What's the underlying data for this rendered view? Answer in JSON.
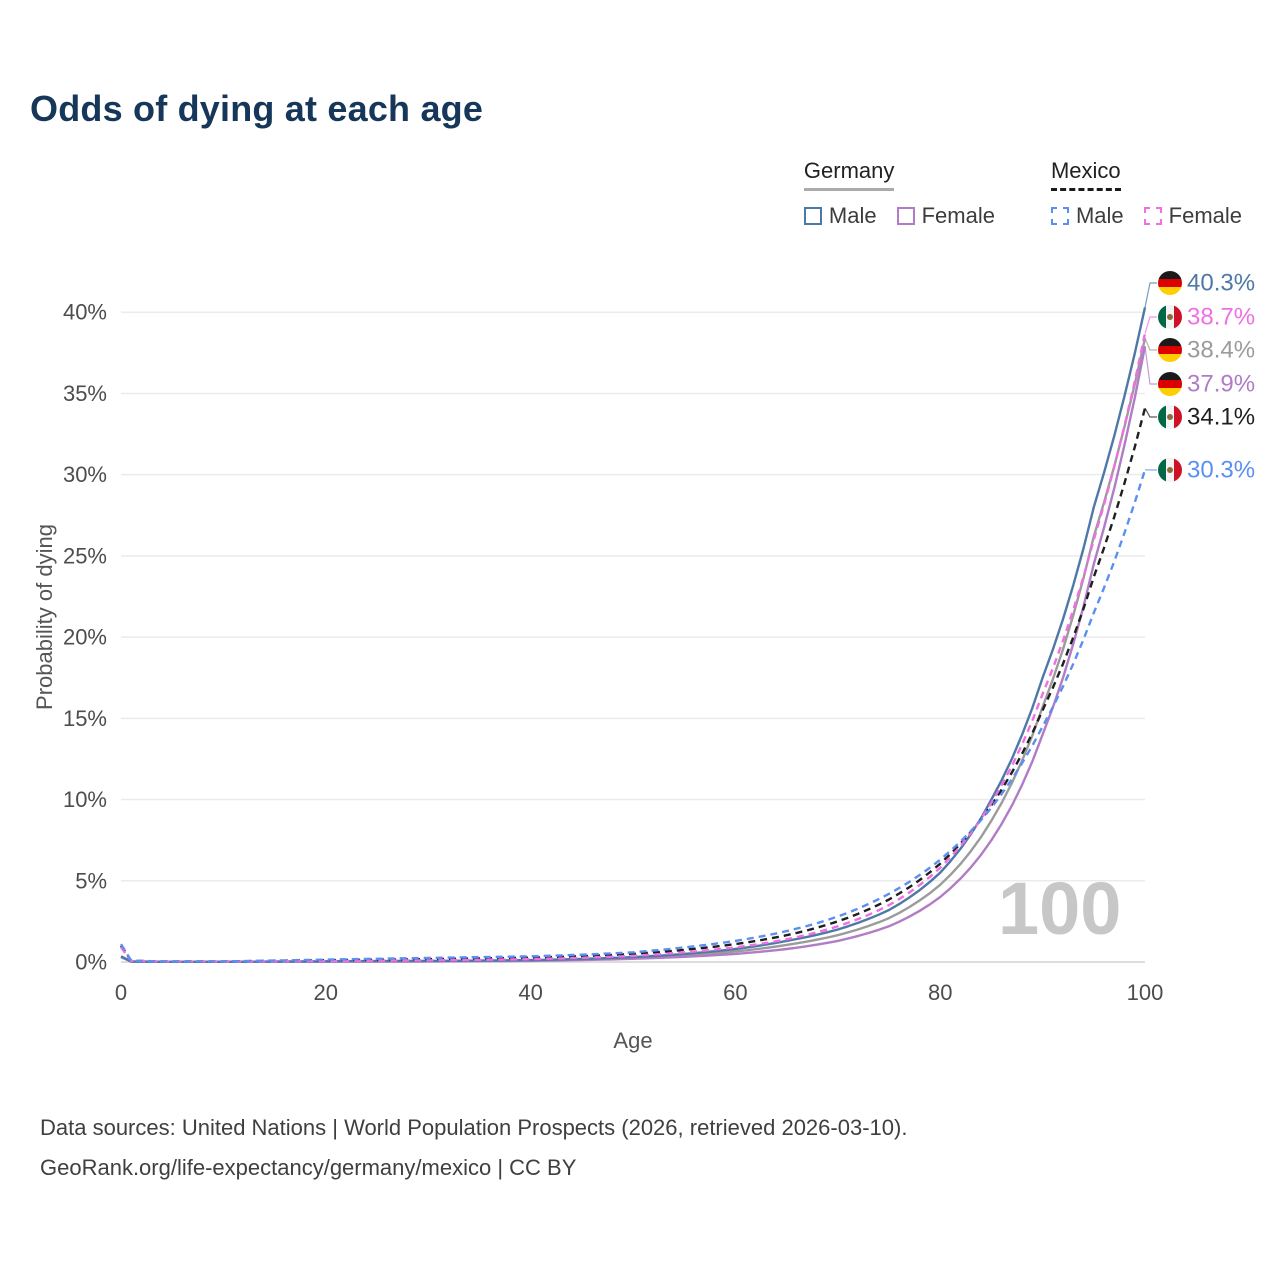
{
  "title": "Odds of dying at each age",
  "watermark": "100",
  "axis": {
    "x_label": "Age",
    "y_label": "Probability of dying"
  },
  "legend": {
    "groups": [
      {
        "label": "Germany",
        "items": [
          {
            "label": "Male",
            "series": "germany-male"
          },
          {
            "label": "Female",
            "series": "germany-female"
          }
        ]
      },
      {
        "label": "Mexico",
        "items": [
          {
            "label": "Male",
            "series": "mexico-male"
          },
          {
            "label": "Female",
            "series": "mexico-female"
          }
        ]
      }
    ]
  },
  "footer": {
    "line1": "Data sources: United Nations | World Population Prospects (2026, retrieved 2026-03-10).",
    "line2": "GeoRank.org/life-expectancy/germany/mexico | CC BY"
  },
  "chart_data": {
    "type": "line",
    "title": "Odds of dying at each age",
    "xlabel": "Age",
    "ylabel": "Probability of dying",
    "xlim": [
      0,
      100
    ],
    "ylim": [
      0,
      42.6
    ],
    "grid": "horizontal",
    "legend_position": "top-right",
    "x_ticks": {
      "values": [
        0,
        20,
        40,
        60,
        80,
        100
      ],
      "labels": [
        "0",
        "20",
        "40",
        "60",
        "80",
        "100"
      ]
    },
    "y_ticks": {
      "values": [
        0,
        5,
        10,
        15,
        20,
        25,
        30,
        35,
        40
      ],
      "labels": [
        "0%",
        "5%",
        "10%",
        "15%",
        "20%",
        "25%",
        "30%",
        "35%",
        "40%"
      ]
    },
    "age_indicator": "100",
    "series": [
      {
        "id": "germany-male",
        "country": "germany",
        "name": "Germany Male",
        "color": "#4e79a7",
        "dash": false,
        "end_label": "40.3%",
        "end_value": 40.3,
        "label_order": 0,
        "ages": [
          0,
          1,
          5,
          10,
          15,
          20,
          25,
          30,
          35,
          40,
          45,
          50,
          55,
          60,
          65,
          70,
          75,
          80,
          85,
          90,
          95,
          100
        ],
        "values": [
          0.35,
          0.03,
          0.012,
          0.012,
          0.025,
          0.045,
          0.055,
          0.065,
          0.085,
          0.12,
          0.19,
          0.3,
          0.5,
          0.8,
          1.3,
          2.0,
          3.2,
          5.5,
          10.0,
          17.5,
          28.0,
          40.3
        ]
      },
      {
        "id": "mexico-female",
        "country": "mexico",
        "name": "Mexico Female",
        "color": "#f06fe2",
        "dash": true,
        "end_label": "38.7%",
        "end_value": 38.7,
        "label_order": 1,
        "ages": [
          0,
          1,
          5,
          10,
          15,
          20,
          25,
          30,
          35,
          40,
          45,
          50,
          55,
          60,
          65,
          70,
          75,
          80,
          85,
          90,
          95,
          100
        ],
        "values": [
          0.9,
          0.07,
          0.025,
          0.03,
          0.045,
          0.06,
          0.08,
          0.1,
          0.13,
          0.18,
          0.26,
          0.38,
          0.6,
          0.9,
          1.4,
          2.2,
          3.5,
          5.8,
          9.8,
          16.5,
          26.0,
          38.7
        ]
      },
      {
        "id": "germany-both",
        "country": "germany",
        "name": "Germany Both sexes",
        "color": "#9b9b9b",
        "dash": false,
        "end_label": "38.4%",
        "end_value": 38.4,
        "label_order": 2,
        "ages": [
          0,
          1,
          5,
          10,
          15,
          20,
          25,
          30,
          35,
          40,
          45,
          50,
          55,
          60,
          65,
          70,
          75,
          80,
          85,
          90,
          95,
          100
        ],
        "values": [
          0.33,
          0.028,
          0.011,
          0.011,
          0.02,
          0.033,
          0.04,
          0.05,
          0.068,
          0.095,
          0.155,
          0.25,
          0.41,
          0.65,
          1.05,
          1.65,
          2.7,
          4.75,
          8.7,
          15.7,
          26.2,
          38.4
        ]
      },
      {
        "id": "germany-female",
        "country": "germany",
        "name": "Germany Female",
        "color": "#b07cc6",
        "dash": false,
        "end_label": "37.9%",
        "end_value": 37.9,
        "label_order": 3,
        "ages": [
          0,
          1,
          5,
          10,
          15,
          20,
          25,
          30,
          35,
          40,
          45,
          50,
          55,
          60,
          65,
          70,
          75,
          80,
          85,
          90,
          95,
          100
        ],
        "values": [
          0.3,
          0.025,
          0.01,
          0.01,
          0.015,
          0.02,
          0.025,
          0.035,
          0.05,
          0.07,
          0.12,
          0.2,
          0.32,
          0.5,
          0.8,
          1.3,
          2.2,
          4.0,
          7.5,
          14.0,
          24.5,
          37.9
        ]
      },
      {
        "id": "mexico-both",
        "country": "mexico",
        "name": "Mexico Both sexes",
        "color": "#1f1f1f",
        "dash": true,
        "end_label": "34.1%",
        "end_value": 34.1,
        "label_order": 4,
        "ages": [
          0,
          1,
          5,
          10,
          15,
          20,
          25,
          30,
          35,
          40,
          45,
          50,
          55,
          60,
          65,
          70,
          75,
          80,
          85,
          90,
          95,
          100
        ],
        "values": [
          1.0,
          0.075,
          0.028,
          0.035,
          0.07,
          0.11,
          0.14,
          0.18,
          0.22,
          0.27,
          0.36,
          0.5,
          0.75,
          1.1,
          1.65,
          2.5,
          3.85,
          6.05,
          9.65,
          15.5,
          23.7,
          34.1
        ]
      },
      {
        "id": "mexico-male",
        "country": "mexico",
        "name": "Mexico Male",
        "color": "#5b8ff2",
        "dash": true,
        "end_label": "30.3%",
        "end_value": 30.3,
        "label_order": 5,
        "ages": [
          0,
          1,
          5,
          10,
          15,
          20,
          25,
          30,
          35,
          40,
          45,
          50,
          55,
          60,
          65,
          70,
          75,
          80,
          85,
          90,
          95,
          100
        ],
        "values": [
          1.1,
          0.08,
          0.03,
          0.04,
          0.09,
          0.15,
          0.2,
          0.25,
          0.3,
          0.35,
          0.45,
          0.6,
          0.9,
          1.3,
          1.9,
          2.8,
          4.2,
          6.3,
          9.5,
          14.5,
          21.5,
          30.3
        ]
      }
    ]
  }
}
